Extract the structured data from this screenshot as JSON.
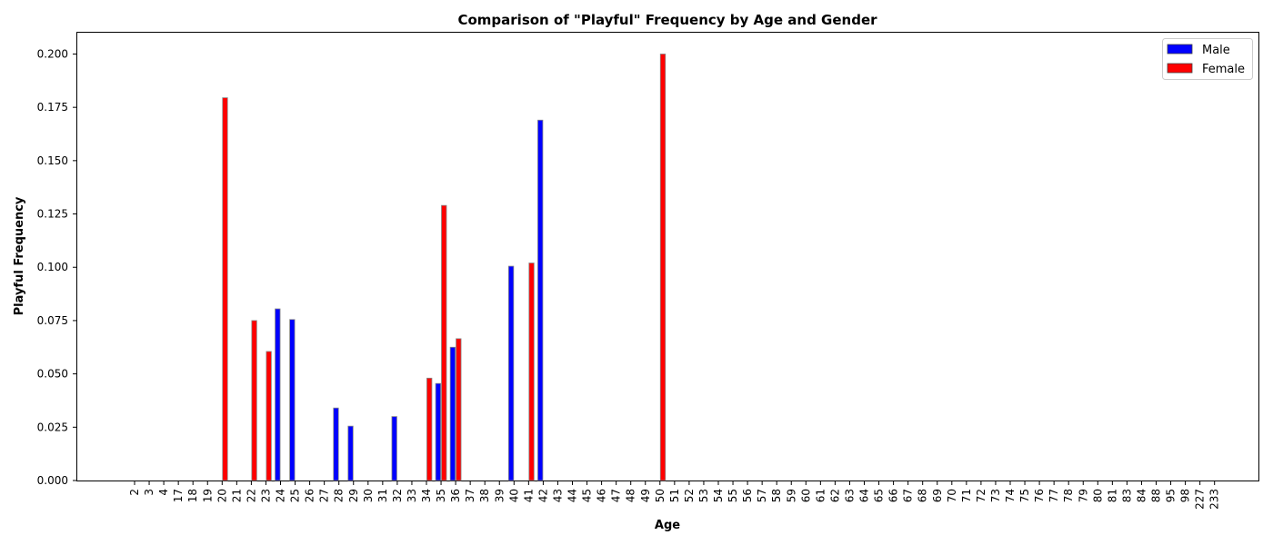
{
  "chart_data": {
    "type": "bar",
    "title": "Comparison of \"Playful\" Frequency by Age and Gender",
    "xlabel": "Age",
    "ylabel": "Playful Frequency",
    "ylim": [
      0,
      0.21
    ],
    "yticks": [
      "0.000",
      "0.025",
      "0.050",
      "0.075",
      "0.100",
      "0.125",
      "0.150",
      "0.175",
      "0.200"
    ],
    "grid": false,
    "legend_placement": "top-right",
    "categories": [
      "2",
      "3",
      "4",
      "17",
      "18",
      "19",
      "20",
      "21",
      "22",
      "23",
      "24",
      "25",
      "26",
      "27",
      "28",
      "29",
      "30",
      "31",
      "32",
      "33",
      "34",
      "35",
      "36",
      "37",
      "38",
      "39",
      "40",
      "41",
      "42",
      "43",
      "44",
      "45",
      "46",
      "47",
      "48",
      "49",
      "50",
      "51",
      "52",
      "53",
      "54",
      "55",
      "56",
      "57",
      "58",
      "59",
      "60",
      "61",
      "62",
      "63",
      "64",
      "65",
      "66",
      "67",
      "68",
      "69",
      "70",
      "71",
      "72",
      "73",
      "74",
      "75",
      "76",
      "77",
      "78",
      "79",
      "80",
      "81",
      "83",
      "84",
      "88",
      "95",
      "98",
      "227",
      "233"
    ],
    "series": [
      {
        "name": "Male",
        "color": "#0000ff",
        "values": [
          0,
          0,
          0,
          0,
          0,
          0,
          0,
          0,
          0,
          0,
          0.0805,
          0.0755,
          0,
          0,
          0.034,
          0.0255,
          0,
          0,
          0.03,
          0,
          0,
          0.0455,
          0.0625,
          0,
          0,
          0,
          0.1005,
          0,
          0.169,
          0,
          0,
          0,
          0,
          0,
          0,
          0,
          0,
          0,
          0,
          0,
          0,
          0,
          0,
          0,
          0,
          0,
          0,
          0,
          0,
          0,
          0,
          0,
          0,
          0,
          0,
          0,
          0,
          0,
          0,
          0,
          0,
          0,
          0,
          0,
          0,
          0,
          0,
          0,
          0,
          0,
          0,
          0,
          0,
          0,
          0
        ]
      },
      {
        "name": "Female",
        "color": "#ff0000",
        "values": [
          0,
          0,
          0,
          0,
          0,
          0,
          0.1795,
          0,
          0.075,
          0.0605,
          0,
          0,
          0,
          0,
          0,
          0,
          0,
          0,
          0,
          0,
          0.048,
          0.129,
          0.0665,
          0,
          0,
          0,
          0,
          0.102,
          0,
          0,
          0,
          0,
          0,
          0,
          0,
          0,
          0.2,
          0,
          0,
          0,
          0,
          0,
          0,
          0,
          0,
          0,
          0,
          0,
          0,
          0,
          0,
          0,
          0,
          0,
          0,
          0,
          0,
          0,
          0,
          0,
          0,
          0,
          0,
          0,
          0,
          0,
          0,
          0,
          0,
          0,
          0,
          0,
          0,
          0,
          0
        ]
      }
    ]
  }
}
